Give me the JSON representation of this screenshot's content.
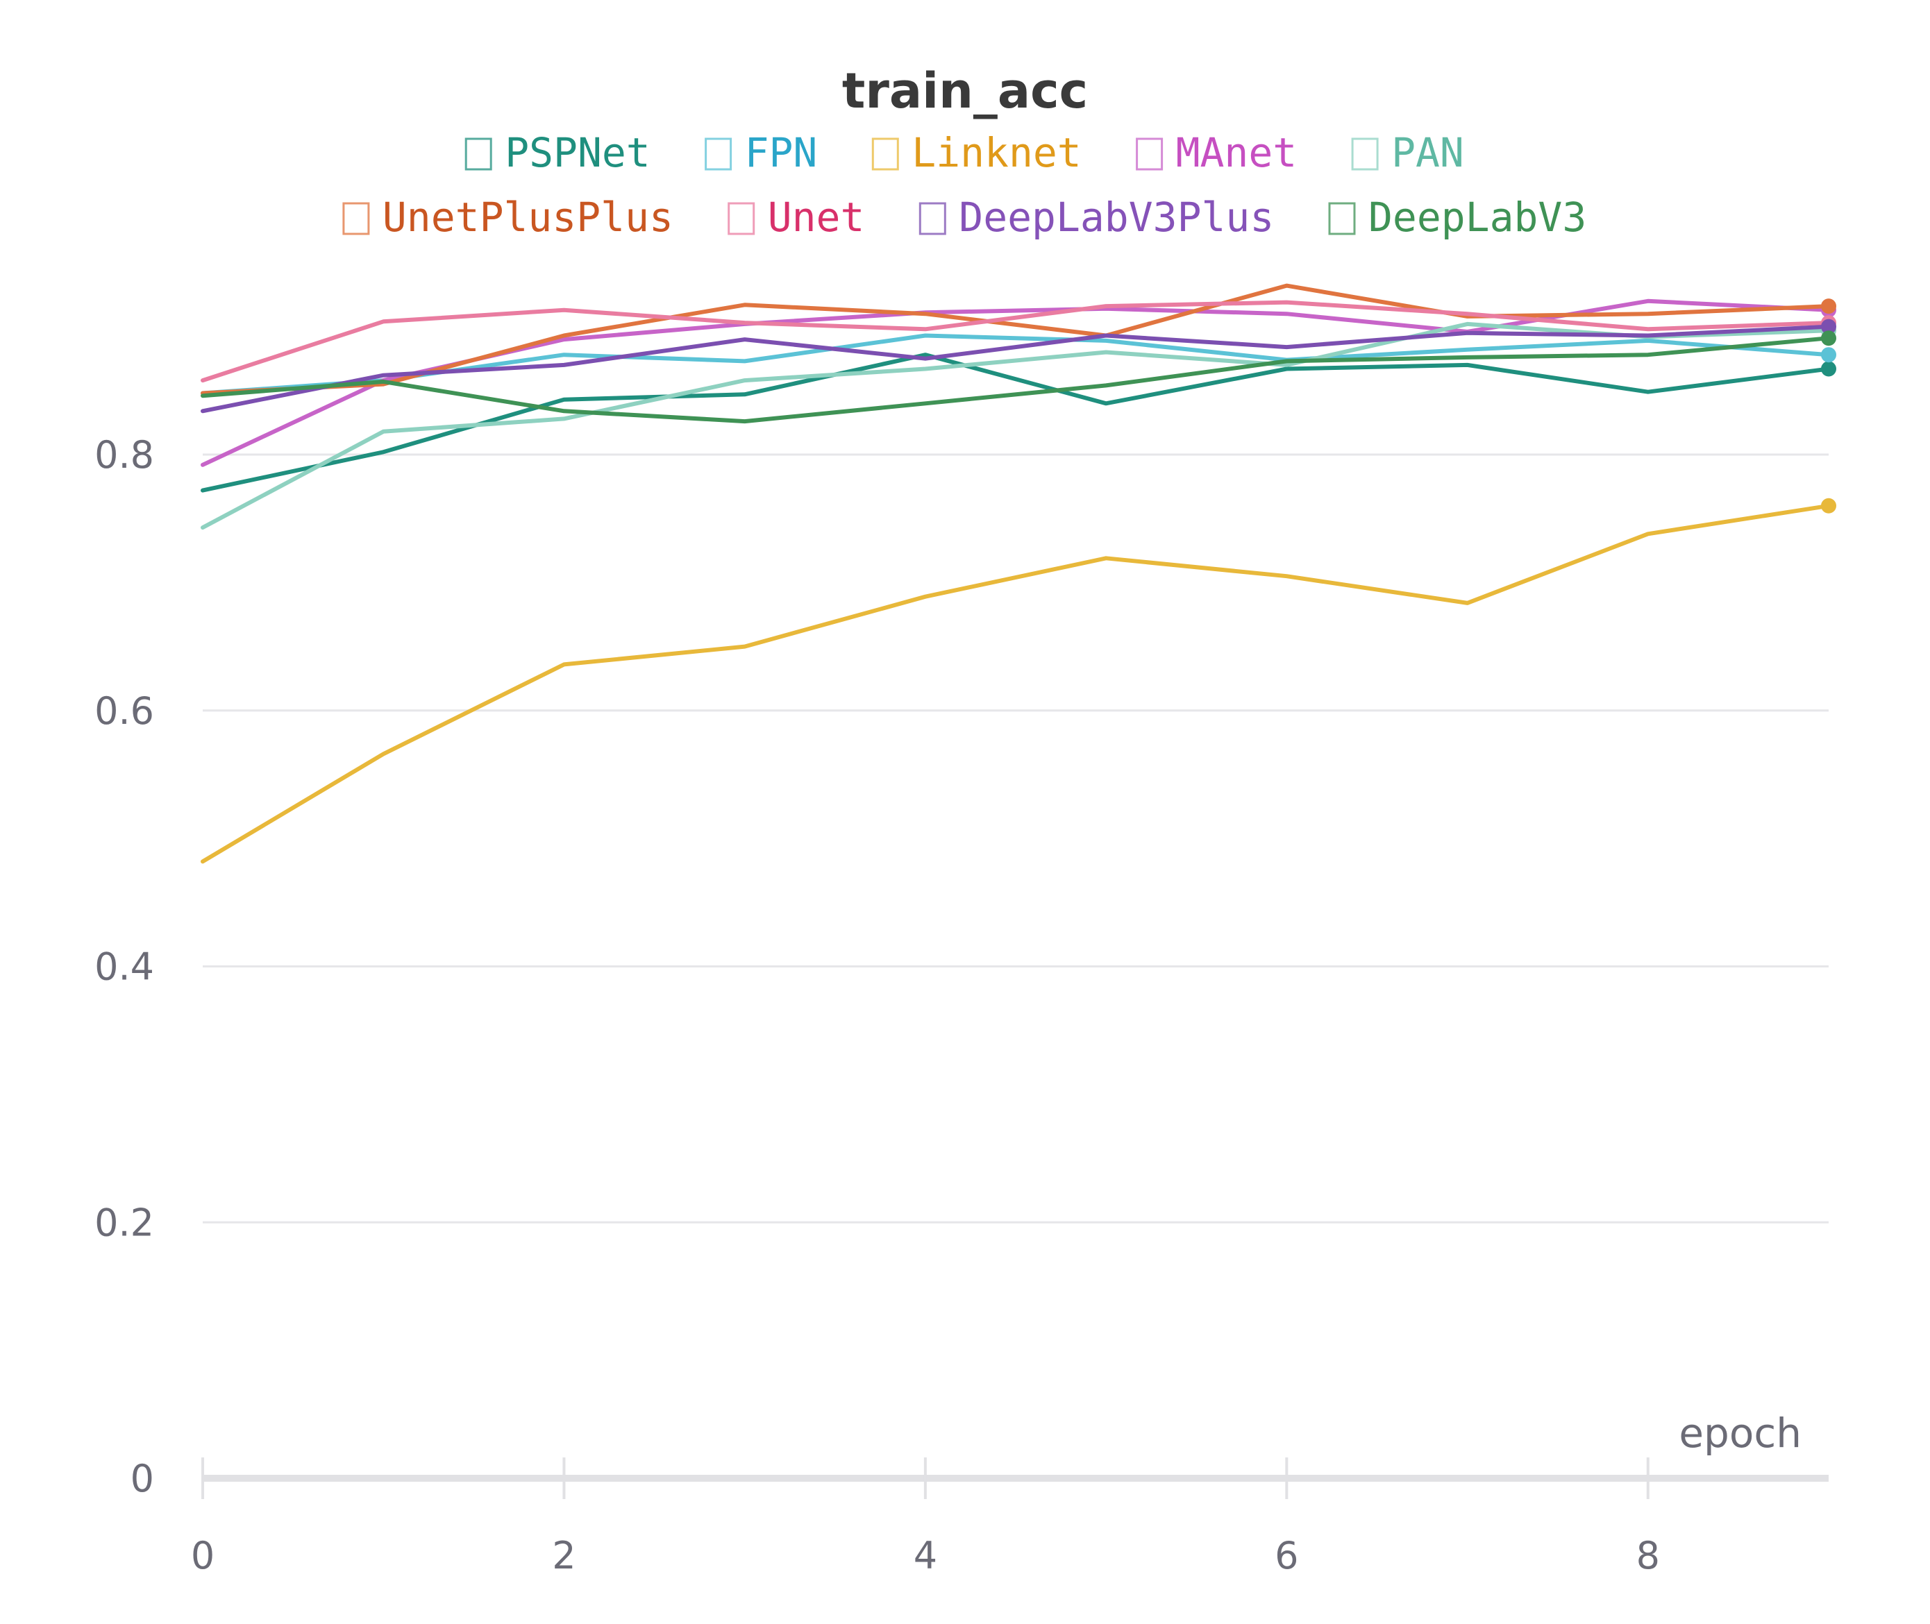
{
  "chart_data": {
    "type": "line",
    "title": "train_acc",
    "xlabel": "epoch",
    "ylabel": "",
    "xlim": [
      0,
      9
    ],
    "ylim": [
      0,
      1
    ],
    "x_ticks": [
      "0",
      "2",
      "4",
      "6",
      "8"
    ],
    "y_ticks": [
      "0",
      "0.2",
      "0.4",
      "0.6",
      "0.8"
    ],
    "grid": true,
    "legend_position": "top",
    "x": [
      0,
      1,
      2,
      3,
      4,
      5,
      6,
      7,
      8,
      9
    ],
    "series": [
      {
        "name": "PSPNet",
        "color": "#1f8f7e",
        "label_color": "#1f8f7e",
        "values": [
          0.772,
          0.802,
          0.843,
          0.847,
          0.878,
          0.84,
          0.867,
          0.87,
          0.849,
          0.867
        ]
      },
      {
        "name": "FPN",
        "color": "#5bc2d6",
        "label_color": "#2aa5c9",
        "values": [
          0.848,
          0.858,
          0.878,
          0.873,
          0.893,
          0.889,
          0.874,
          0.882,
          0.889,
          0.878
        ]
      },
      {
        "name": "Linknet",
        "color": "#e8b83a",
        "label_color": "#e09a1a",
        "values": [
          0.482,
          0.566,
          0.636,
          0.65,
          0.689,
          0.719,
          0.705,
          0.684,
          0.738,
          0.76
        ]
      },
      {
        "name": "MAnet",
        "color": "#c764c8",
        "label_color": "#c64fc1",
        "values": [
          0.792,
          0.858,
          0.89,
          0.902,
          0.911,
          0.914,
          0.91,
          0.896,
          0.92,
          0.913
        ]
      },
      {
        "name": "PAN",
        "color": "#8ed1c0",
        "label_color": "#5fb8a3",
        "values": [
          0.743,
          0.818,
          0.828,
          0.858,
          0.867,
          0.88,
          0.87,
          0.902,
          0.892,
          0.897
        ]
      },
      {
        "name": "UnetPlusPlus",
        "color": "#e0743f",
        "label_color": "#c95621",
        "values": [
          0.848,
          0.855,
          0.893,
          0.917,
          0.91,
          0.893,
          0.932,
          0.908,
          0.91,
          0.916
        ]
      },
      {
        "name": "Unet",
        "color": "#e97ca0",
        "label_color": "#d8306a",
        "values": [
          0.858,
          0.904,
          0.913,
          0.903,
          0.898,
          0.916,
          0.919,
          0.91,
          0.898,
          0.903
        ]
      },
      {
        "name": "DeepLabV3Plus",
        "color": "#7b4fb0",
        "label_color": "#8552b8",
        "values": [
          0.834,
          0.862,
          0.87,
          0.89,
          0.875,
          0.893,
          0.884,
          0.895,
          0.893,
          0.9
        ]
      },
      {
        "name": "DeepLabV3",
        "color": "#3f9255",
        "label_color": "#3f9255",
        "values": [
          0.846,
          0.857,
          0.834,
          0.826,
          0.84,
          0.854,
          0.873,
          0.876,
          0.878,
          0.891
        ]
      }
    ]
  }
}
